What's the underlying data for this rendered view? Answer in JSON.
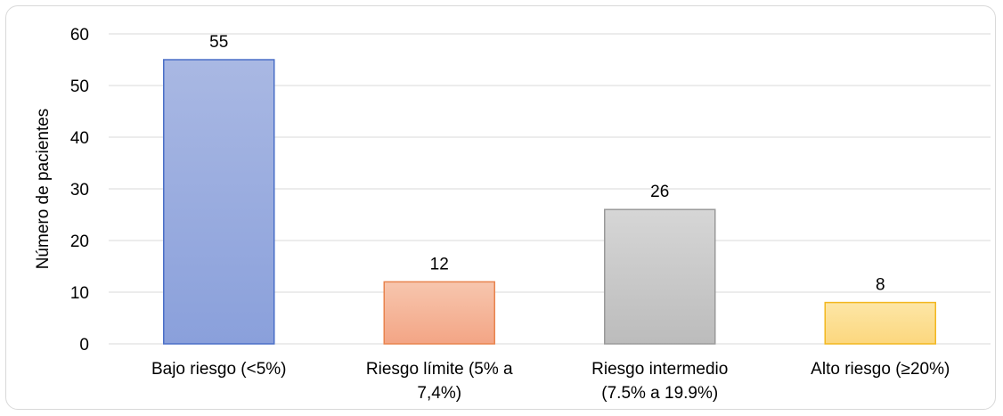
{
  "chart_data": {
    "type": "bar",
    "categories": [
      [
        "Bajo riesgo (<5%)"
      ],
      [
        "Riesgo límite (5% a",
        "7,4%)"
      ],
      [
        "Riesgo intermedio",
        "(7.5% a 19.9%)"
      ],
      [
        "Alto riesgo (≥20%)"
      ]
    ],
    "values": [
      55,
      12,
      26,
      8
    ],
    "data_labels": [
      "55",
      "12",
      "26",
      "8"
    ],
    "title": "",
    "xlabel": "",
    "ylabel": "Número de pacientes",
    "ylim": [
      0,
      60
    ],
    "yticks": [
      0,
      10,
      20,
      30,
      40,
      50,
      60
    ],
    "grid": true,
    "legend": "none",
    "bar_colors": [
      {
        "top": "#a9b8e3",
        "bottom": "#8aa0db",
        "stroke": "#4a6fc7"
      },
      {
        "top": "#f7c6ae",
        "bottom": "#f3a585",
        "stroke": "#e8834d"
      },
      {
        "top": "#d6d6d6",
        "bottom": "#bcbcbc",
        "stroke": "#9a9a9a"
      },
      {
        "top": "#fde6a6",
        "bottom": "#fcd77e",
        "stroke": "#f2b71f"
      }
    ],
    "gridline_color": "#d9d9d9"
  }
}
